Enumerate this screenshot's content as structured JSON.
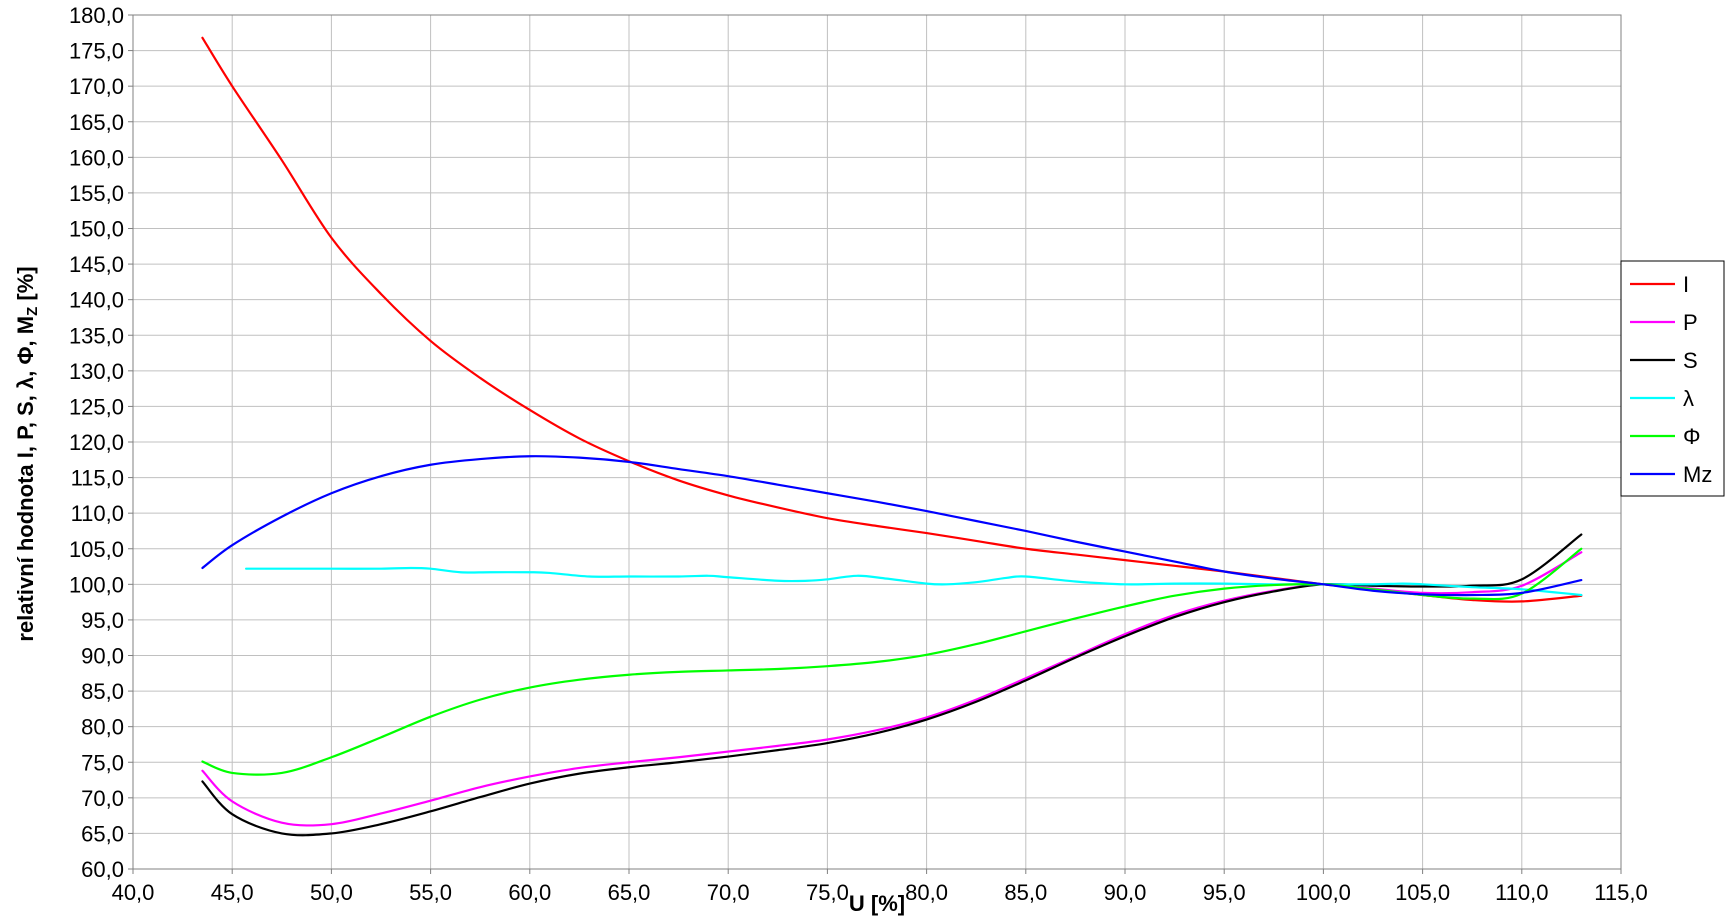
{
  "chart_data": {
    "type": "line",
    "title": "",
    "xlabel": "U [%]",
    "ylabel": "relativní hodnota I, P, S, λ, Φ, M",
    "ylabel_sub": "Z",
    "ylabel_suffix": " [%]",
    "xlim": [
      40,
      115
    ],
    "ylim": [
      60,
      180
    ],
    "x_ticks": [
      "40,0",
      "45,0",
      "50,0",
      "55,0",
      "60,0",
      "65,0",
      "70,0",
      "75,0",
      "80,0",
      "85,0",
      "90,0",
      "95,0",
      "100,0",
      "105,0",
      "110,0",
      "115,0"
    ],
    "y_ticks": [
      "60,0",
      "65,0",
      "70,0",
      "75,0",
      "80,0",
      "85,0",
      "90,0",
      "95,0",
      "100,0",
      "105,0",
      "110,0",
      "115,0",
      "120,0",
      "125,0",
      "130,0",
      "135,0",
      "140,0",
      "145,0",
      "150,0",
      "155,0",
      "160,0",
      "165,0",
      "170,0",
      "175,0",
      "180,0"
    ],
    "grid": true,
    "legend_position": "right",
    "series": [
      {
        "name": "I",
        "color": "#ff0000",
        "points": [
          [
            43.5,
            176.8
          ],
          [
            45,
            170.0
          ],
          [
            47.5,
            159.6
          ],
          [
            50,
            148.7
          ],
          [
            52.5,
            140.8
          ],
          [
            55,
            134.2
          ],
          [
            57.5,
            129.0
          ],
          [
            60,
            124.5
          ],
          [
            62.5,
            120.5
          ],
          [
            65,
            117.3
          ],
          [
            67.5,
            114.6
          ],
          [
            70,
            112.5
          ],
          [
            72.5,
            110.8
          ],
          [
            75,
            109.3
          ],
          [
            77.5,
            108.2
          ],
          [
            80,
            107.2
          ],
          [
            82.5,
            106.1
          ],
          [
            85,
            105.0
          ],
          [
            87.5,
            104.2
          ],
          [
            90,
            103.4
          ],
          [
            92.5,
            102.6
          ],
          [
            95,
            101.8
          ],
          [
            97.5,
            100.9
          ],
          [
            100,
            100.0
          ],
          [
            102.5,
            99.3
          ],
          [
            105,
            98.5
          ],
          [
            107.5,
            97.8
          ],
          [
            110,
            97.6
          ],
          [
            113,
            98.4
          ]
        ]
      },
      {
        "name": "P",
        "color": "#ff00ff",
        "points": [
          [
            43.5,
            73.8
          ],
          [
            45,
            69.5
          ],
          [
            47.5,
            66.5
          ],
          [
            50,
            66.3
          ],
          [
            52.5,
            67.8
          ],
          [
            55,
            69.6
          ],
          [
            57.5,
            71.5
          ],
          [
            60,
            73.0
          ],
          [
            62.5,
            74.2
          ],
          [
            65,
            75.0
          ],
          [
            67.5,
            75.7
          ],
          [
            70,
            76.5
          ],
          [
            72.5,
            77.3
          ],
          [
            75,
            78.2
          ],
          [
            77.5,
            79.5
          ],
          [
            80,
            81.3
          ],
          [
            82.5,
            83.8
          ],
          [
            85,
            86.8
          ],
          [
            87.5,
            89.9
          ],
          [
            90,
            93.0
          ],
          [
            92.5,
            95.7
          ],
          [
            95,
            97.7
          ],
          [
            97.5,
            99.1
          ],
          [
            100,
            100.0
          ],
          [
            102.5,
            99.4
          ],
          [
            105,
            98.8
          ],
          [
            107.5,
            98.9
          ],
          [
            110,
            99.8
          ],
          [
            113,
            104.5
          ]
        ]
      },
      {
        "name": "S",
        "color": "#000000",
        "points": [
          [
            43.5,
            72.3
          ],
          [
            45,
            67.7
          ],
          [
            47.5,
            65.0
          ],
          [
            50,
            65.0
          ],
          [
            52.5,
            66.3
          ],
          [
            55,
            68.1
          ],
          [
            57.5,
            70.1
          ],
          [
            60,
            72.0
          ],
          [
            62.5,
            73.4
          ],
          [
            65,
            74.3
          ],
          [
            67.5,
            75.0
          ],
          [
            70,
            75.8
          ],
          [
            72.5,
            76.7
          ],
          [
            75,
            77.7
          ],
          [
            77.5,
            79.1
          ],
          [
            80,
            81.0
          ],
          [
            82.5,
            83.5
          ],
          [
            85,
            86.5
          ],
          [
            87.5,
            89.7
          ],
          [
            90,
            92.7
          ],
          [
            92.5,
            95.4
          ],
          [
            95,
            97.5
          ],
          [
            97.5,
            99.0
          ],
          [
            100,
            100.0
          ],
          [
            102.5,
            99.8
          ],
          [
            105,
            99.7
          ],
          [
            107.5,
            99.8
          ],
          [
            110,
            100.7
          ],
          [
            113,
            107.0
          ]
        ]
      },
      {
        "name": "λ",
        "color": "#00ffff",
        "points": [
          [
            45.7,
            102.2
          ],
          [
            48,
            102.2
          ],
          [
            50,
            102.2
          ],
          [
            52.5,
            102.2
          ],
          [
            54,
            102.3
          ],
          [
            55,
            102.2
          ],
          [
            56.5,
            101.7
          ],
          [
            58,
            101.7
          ],
          [
            60,
            101.7
          ],
          [
            61,
            101.6
          ],
          [
            63,
            101.1
          ],
          [
            65,
            101.1
          ],
          [
            67.5,
            101.1
          ],
          [
            69,
            101.2
          ],
          [
            70,
            101.0
          ],
          [
            72.5,
            100.5
          ],
          [
            74,
            100.5
          ],
          [
            75,
            100.7
          ],
          [
            76.5,
            101.2
          ],
          [
            78,
            100.8
          ],
          [
            80,
            100.1
          ],
          [
            81,
            100.0
          ],
          [
            82.5,
            100.3
          ],
          [
            84,
            100.9
          ],
          [
            85,
            101.1
          ],
          [
            87.5,
            100.4
          ],
          [
            90,
            100.0
          ],
          [
            92.5,
            100.1
          ],
          [
            95,
            100.1
          ],
          [
            97.5,
            100.0
          ],
          [
            100,
            100.0
          ],
          [
            102.5,
            100.0
          ],
          [
            104,
            100.1
          ],
          [
            105,
            100.0
          ],
          [
            107.5,
            99.6
          ],
          [
            110,
            99.3
          ],
          [
            113,
            98.5
          ]
        ]
      },
      {
        "name": "Φ",
        "color": "#00ff00",
        "points": [
          [
            43.5,
            75.1
          ],
          [
            45,
            73.5
          ],
          [
            47.5,
            73.5
          ],
          [
            50,
            75.7
          ],
          [
            52.5,
            78.5
          ],
          [
            55,
            81.4
          ],
          [
            57.5,
            83.8
          ],
          [
            60,
            85.5
          ],
          [
            62.5,
            86.6
          ],
          [
            65,
            87.3
          ],
          [
            67.5,
            87.7
          ],
          [
            70,
            87.9
          ],
          [
            72.5,
            88.1
          ],
          [
            75,
            88.5
          ],
          [
            77.5,
            89.1
          ],
          [
            80,
            90.1
          ],
          [
            82.5,
            91.6
          ],
          [
            85,
            93.4
          ],
          [
            87.5,
            95.2
          ],
          [
            90,
            96.9
          ],
          [
            92.5,
            98.4
          ],
          [
            95,
            99.4
          ],
          [
            97.5,
            99.9
          ],
          [
            100,
            100.0
          ],
          [
            102.5,
            99.3
          ],
          [
            105,
            98.5
          ],
          [
            107.5,
            98.0
          ],
          [
            110,
            98.7
          ],
          [
            113,
            105.0
          ]
        ]
      },
      {
        "name": "Mz",
        "color": "#0000ff",
        "points": [
          [
            43.5,
            102.3
          ],
          [
            45,
            105.5
          ],
          [
            47.5,
            109.5
          ],
          [
            50,
            112.8
          ],
          [
            52.5,
            115.2
          ],
          [
            55,
            116.8
          ],
          [
            57.5,
            117.6
          ],
          [
            60,
            118.0
          ],
          [
            62.5,
            117.8
          ],
          [
            65,
            117.2
          ],
          [
            67.5,
            116.2
          ],
          [
            70,
            115.2
          ],
          [
            72.5,
            114.0
          ],
          [
            75,
            112.8
          ],
          [
            77.5,
            111.6
          ],
          [
            80,
            110.3
          ],
          [
            82.5,
            108.9
          ],
          [
            85,
            107.5
          ],
          [
            87.5,
            106.0
          ],
          [
            90,
            104.6
          ],
          [
            92.5,
            103.2
          ],
          [
            95,
            101.8
          ],
          [
            97.5,
            100.8
          ],
          [
            100,
            100.0
          ],
          [
            102.5,
            99.1
          ],
          [
            105,
            98.6
          ],
          [
            107.5,
            98.5
          ],
          [
            110,
            98.8
          ],
          [
            113,
            100.6
          ]
        ]
      }
    ]
  }
}
